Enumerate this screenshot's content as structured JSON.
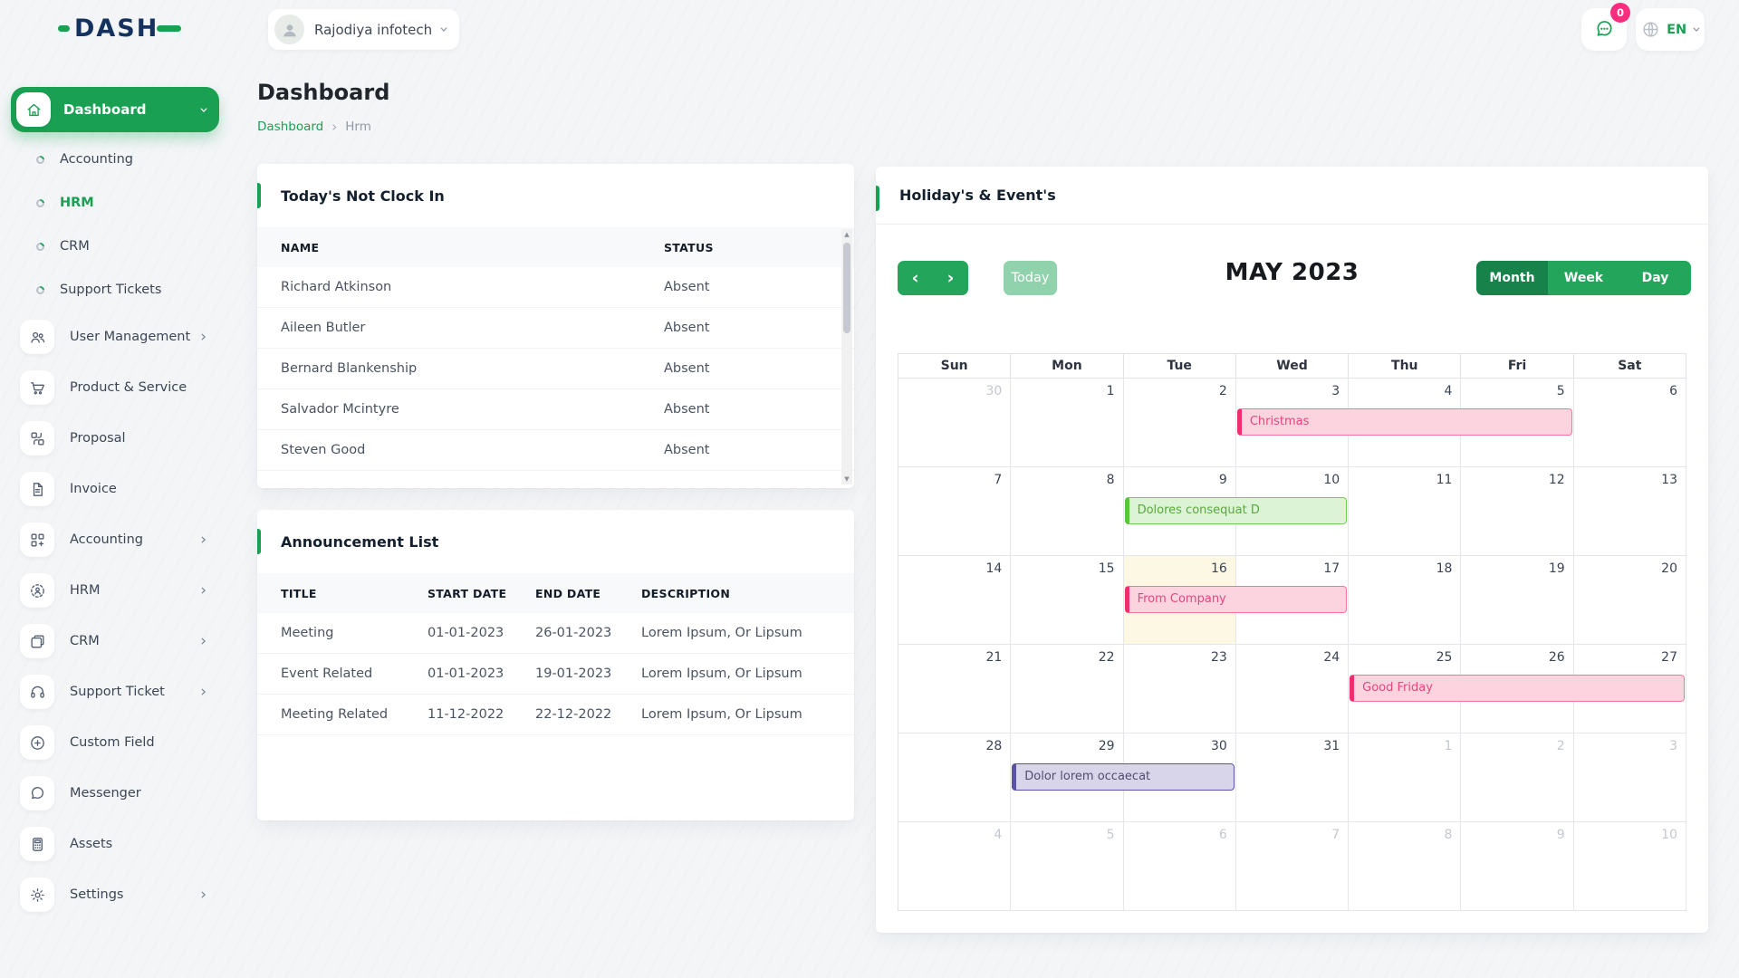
{
  "app": {
    "logo_text": "DASH"
  },
  "topbar": {
    "company_name": "Rajodiya infotech",
    "messages_badge": "0",
    "language": "EN"
  },
  "sidebar": {
    "items": [
      {
        "label": "Dashboard",
        "icon": "home-icon",
        "style": "active",
        "chevron": "down"
      },
      {
        "label": "Accounting",
        "style": "sub"
      },
      {
        "label": "HRM",
        "style": "sub-active"
      },
      {
        "label": "CRM",
        "style": "sub"
      },
      {
        "label": "Support Tickets",
        "style": "sub"
      },
      {
        "label": "User Management",
        "icon": "users-icon",
        "chevron": "right"
      },
      {
        "label": "Product & Service",
        "icon": "cart-icon"
      },
      {
        "label": "Proposal",
        "icon": "proposal-icon"
      },
      {
        "label": "Invoice",
        "icon": "invoice-icon"
      },
      {
        "label": "Accounting",
        "icon": "grid-plus-icon",
        "chevron": "right"
      },
      {
        "label": "HRM",
        "icon": "person-circle-icon",
        "chevron": "right"
      },
      {
        "label": "CRM",
        "icon": "squares-icon",
        "chevron": "right"
      },
      {
        "label": "Support Ticket",
        "icon": "headset-icon",
        "chevron": "right"
      },
      {
        "label": "Custom Field",
        "icon": "plus-circle-icon"
      },
      {
        "label": "Messenger",
        "icon": "message-icon"
      },
      {
        "label": "Assets",
        "icon": "calculator-icon"
      },
      {
        "label": "Settings",
        "icon": "gear-icon",
        "chevron": "right"
      }
    ]
  },
  "page": {
    "title": "Dashboard",
    "breadcrumb_link": "Dashboard",
    "breadcrumb_current": "Hrm"
  },
  "clockin": {
    "title": "Today's Not Clock In",
    "columns": [
      "NAME",
      "STATUS"
    ],
    "rows": [
      [
        "Richard Atkinson",
        "Absent"
      ],
      [
        "Aileen Butler",
        "Absent"
      ],
      [
        "Bernard Blankenship",
        "Absent"
      ],
      [
        "Salvador Mcintyre",
        "Absent"
      ],
      [
        "Steven Good",
        "Absent"
      ]
    ]
  },
  "announcements": {
    "title": "Announcement List",
    "columns": [
      "TITLE",
      "START DATE",
      "END DATE",
      "DESCRIPTION"
    ],
    "rows": [
      [
        "Meeting",
        "01-01-2023",
        "26-01-2023",
        "Lorem Ipsum, Or Lipsum"
      ],
      [
        "Event Related",
        "01-01-2023",
        "19-01-2023",
        "Lorem Ipsum, Or Lipsum"
      ],
      [
        "Meeting Related",
        "11-12-2022",
        "22-12-2022",
        "Lorem Ipsum, Or Lipsum"
      ]
    ]
  },
  "calendar": {
    "title": "Holiday's & Event's",
    "month_title": "MAY 2023",
    "today_button": "Today",
    "views": [
      "Month",
      "Week",
      "Day"
    ],
    "active_view": "Month",
    "day_headers": [
      "Sun",
      "Mon",
      "Tue",
      "Wed",
      "Thu",
      "Fri",
      "Sat"
    ],
    "weeks": [
      [
        {
          "d": 30,
          "muted": true
        },
        {
          "d": 1
        },
        {
          "d": 2
        },
        {
          "d": 3
        },
        {
          "d": 4
        },
        {
          "d": 5
        },
        {
          "d": 6
        }
      ],
      [
        {
          "d": 7
        },
        {
          "d": 8
        },
        {
          "d": 9
        },
        {
          "d": 10
        },
        {
          "d": 11
        },
        {
          "d": 12
        },
        {
          "d": 13
        }
      ],
      [
        {
          "d": 14
        },
        {
          "d": 15
        },
        {
          "d": 16,
          "today": true
        },
        {
          "d": 17
        },
        {
          "d": 18
        },
        {
          "d": 19
        },
        {
          "d": 20
        }
      ],
      [
        {
          "d": 21
        },
        {
          "d": 22
        },
        {
          "d": 23
        },
        {
          "d": 24
        },
        {
          "d": 25
        },
        {
          "d": 26
        },
        {
          "d": 27
        }
      ],
      [
        {
          "d": 28
        },
        {
          "d": 29
        },
        {
          "d": 30
        },
        {
          "d": 31
        },
        {
          "d": 1,
          "muted": true
        },
        {
          "d": 2,
          "muted": true
        },
        {
          "d": 3,
          "muted": true
        }
      ],
      [
        {
          "d": 4,
          "muted": true
        },
        {
          "d": 5,
          "muted": true
        },
        {
          "d": 6,
          "muted": true
        },
        {
          "d": 7,
          "muted": true
        },
        {
          "d": 8,
          "muted": true
        },
        {
          "d": 9,
          "muted": true
        },
        {
          "d": 10,
          "muted": true
        }
      ]
    ],
    "events": [
      {
        "label": "Christmas",
        "week": 0,
        "col": 3,
        "span": 3,
        "color": "pink"
      },
      {
        "label": "Dolores consequat D",
        "week": 1,
        "col": 2,
        "span": 2,
        "color": "green"
      },
      {
        "label": "From Company",
        "week": 2,
        "col": 2,
        "span": 2,
        "color": "pink"
      },
      {
        "label": "Good Friday",
        "week": 3,
        "col": 4,
        "span": 3,
        "color": "pink"
      },
      {
        "label": "Dolor lorem occaecat",
        "week": 4,
        "col": 1,
        "span": 2,
        "color": "purple"
      }
    ]
  },
  "colors": {
    "primary_green": "#1aa053",
    "view_active_green": "#17824a",
    "view_green": "#23a55c",
    "today_button_green": "#8fd2ab",
    "badge_pink": "#fb2e7e",
    "event_pink": "#f12d70",
    "event_green": "#5cc33c",
    "event_purple": "#5b54a4",
    "today_cell_yellow": "#fcf8e3"
  }
}
